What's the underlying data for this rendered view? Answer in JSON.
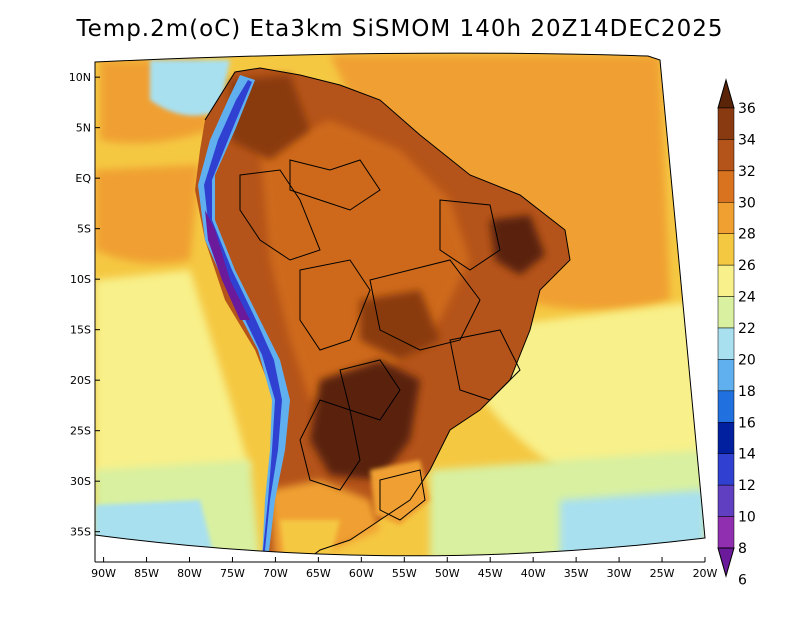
{
  "title": "Temp.2m(oC) Eta3km SiSMOM 140h 20Z14DEC2025",
  "map": {
    "lat_labels": [
      "10N",
      "5N",
      "EQ",
      "5S",
      "10S",
      "15S",
      "20S",
      "25S",
      "30S",
      "35S"
    ],
    "lat_values": [
      10,
      5,
      0,
      -5,
      -10,
      -15,
      -20,
      -25,
      -30,
      -35
    ],
    "lon_labels": [
      "90W",
      "85W",
      "80W",
      "75W",
      "70W",
      "65W",
      "60W",
      "55W",
      "50W",
      "45W",
      "40W",
      "35W",
      "30W",
      "25W",
      "20W"
    ],
    "lon_values": [
      -90,
      -85,
      -80,
      -75,
      -70,
      -65,
      -60,
      -55,
      -50,
      -45,
      -40,
      -35,
      -30,
      -25,
      -20
    ],
    "lat_range": [
      -38,
      11.5
    ],
    "lon_range": [
      -91,
      -20
    ]
  },
  "colorbar": {
    "labels": [
      "36",
      "34",
      "32",
      "30",
      "28",
      "26",
      "24",
      "22",
      "20",
      "18",
      "16",
      "14",
      "12",
      "10",
      "8",
      "6"
    ],
    "colors": [
      "#5a2408",
      "#8a3a10",
      "#b5541a",
      "#d9731f",
      "#f0a030",
      "#f5c842",
      "#f8f08a",
      "#d8f0a0",
      "#a8e0f0",
      "#60b0f0",
      "#2070e0",
      "#0020a0",
      "#3040d0",
      "#6040c0",
      "#9030b0",
      "#6a1a9a"
    ],
    "units": "oC"
  }
}
